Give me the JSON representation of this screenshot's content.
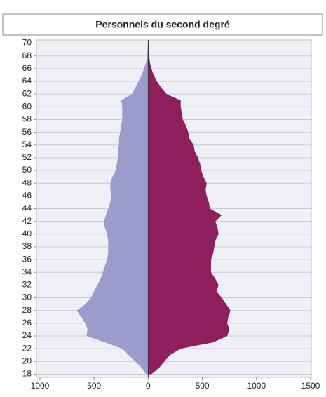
{
  "chart_data": {
    "type": "pyramid",
    "title": "Personnels du second degré",
    "categories": [
      18,
      19,
      20,
      21,
      22,
      23,
      24,
      25,
      26,
      27,
      28,
      29,
      30,
      31,
      32,
      33,
      34,
      35,
      36,
      37,
      38,
      39,
      40,
      41,
      42,
      43,
      44,
      45,
      46,
      47,
      48,
      49,
      50,
      51,
      52,
      53,
      54,
      55,
      56,
      57,
      58,
      59,
      60,
      61,
      62,
      63,
      64,
      65,
      66,
      67,
      68,
      69,
      70
    ],
    "series": [
      {
        "color": "#9b9bcc",
        "values": [
          -20,
          -60,
          -120,
          -180,
          -240,
          -400,
          -570,
          -560,
          -580,
          -620,
          -660,
          -580,
          -530,
          -500,
          -470,
          -440,
          -420,
          -400,
          -380,
          -370,
          -370,
          -370,
          -380,
          -400,
          -410,
          -390,
          -370,
          -350,
          -340,
          -350,
          -350,
          -330,
          -300,
          -290,
          -280,
          -280,
          -270,
          -270,
          -260,
          -250,
          -240,
          -240,
          -240,
          -250,
          -150,
          -120,
          -90,
          -60,
          -40,
          -20,
          -10,
          -5,
          -3
        ]
      },
      {
        "color": "#8e1f5c",
        "values": [
          30,
          100,
          150,
          200,
          300,
          600,
          730,
          750,
          730,
          740,
          760,
          720,
          680,
          630,
          650,
          620,
          580,
          580,
          580,
          600,
          610,
          620,
          650,
          640,
          620,
          680,
          570,
          560,
          540,
          530,
          540,
          510,
          490,
          480,
          460,
          430,
          420,
          380,
          370,
          350,
          320,
          310,
          300,
          300,
          170,
          120,
          80,
          50,
          30,
          15,
          10,
          5,
          3
        ]
      }
    ],
    "xlim": [
      -1000,
      1500
    ],
    "xticks": [
      {
        "value": -1000,
        "label": "1000"
      },
      {
        "value": -500,
        "label": "500"
      },
      0,
      500,
      1000,
      1500
    ],
    "ylim": [
      17.5,
      70.5
    ],
    "yticks": [
      18,
      20,
      22,
      24,
      26,
      28,
      30,
      32,
      34,
      36,
      38,
      40,
      42,
      44,
      46,
      48,
      50,
      52,
      54,
      56,
      58,
      60,
      62,
      64,
      66,
      68,
      70
    ],
    "grid": true
  }
}
